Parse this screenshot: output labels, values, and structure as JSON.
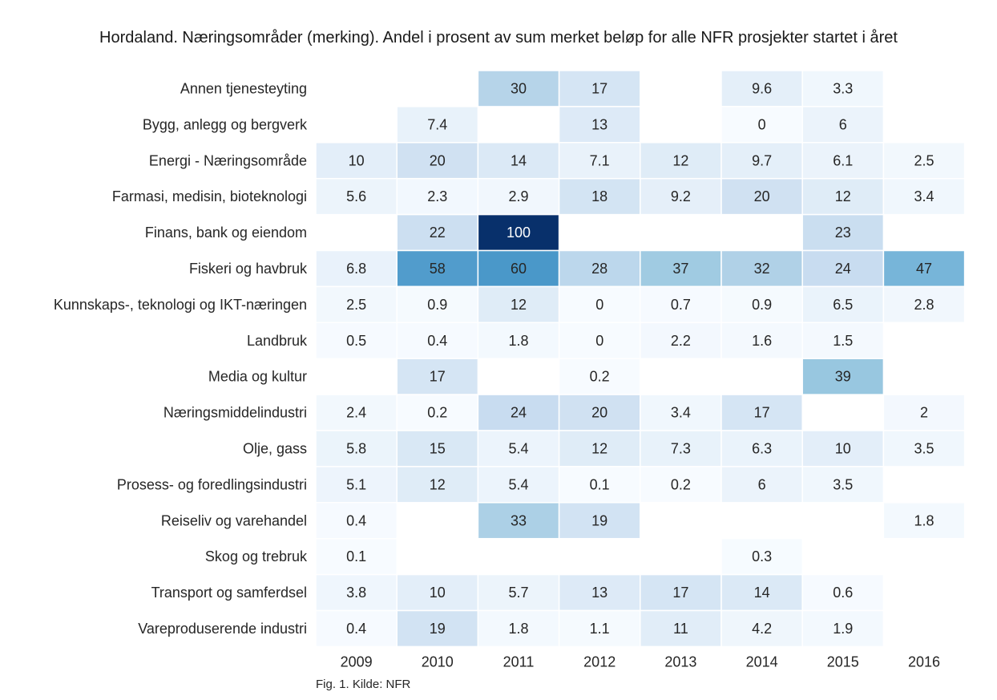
{
  "chart_data": {
    "type": "heatmap",
    "title": "Hordaland. Næringsområder (merking). Andel i prosent av sum merket beløp for alle NFR prosjekter startet i året",
    "xlabel": "",
    "ylabel": "",
    "columns": [
      "2009",
      "2010",
      "2011",
      "2012",
      "2013",
      "2014",
      "2015",
      "2016"
    ],
    "rows": [
      "Annen tjenesteyting",
      "Bygg, anlegg og bergverk",
      "Energi - Næringsområde",
      "Farmasi, medisin, bioteknologi",
      "Finans, bank og eiendom",
      "Fiskeri og havbruk",
      "Kunnskaps-, teknologi og IKT-næringen",
      "Landbruk",
      "Media og kultur",
      "Næringsmiddelindustri",
      "Olje, gass",
      "Prosess- og foredlingsindustri",
      "Reiseliv og varehandel",
      "Skog og trebruk",
      "Transport og samferdsel",
      "Vareproduserende industri"
    ],
    "values": [
      [
        null,
        null,
        30,
        17,
        null,
        9.6,
        3.3,
        null
      ],
      [
        null,
        7.4,
        null,
        13,
        null,
        0,
        6,
        null
      ],
      [
        10,
        20,
        14,
        7.1,
        12,
        9.7,
        6.1,
        2.5
      ],
      [
        5.6,
        2.3,
        2.9,
        18,
        9.2,
        20,
        12,
        3.4
      ],
      [
        null,
        22,
        100,
        null,
        null,
        null,
        23,
        null
      ],
      [
        6.8,
        58,
        60,
        28,
        37,
        32,
        24,
        47
      ],
      [
        2.5,
        0.9,
        12,
        0,
        0.7,
        0.9,
        6.5,
        2.8
      ],
      [
        0.5,
        0.4,
        1.8,
        0,
        2.2,
        1.6,
        1.5,
        null
      ],
      [
        null,
        17,
        null,
        0.2,
        null,
        null,
        39,
        null
      ],
      [
        2.4,
        0.2,
        24,
        20,
        3.4,
        17,
        null,
        2
      ],
      [
        5.8,
        15,
        5.4,
        12,
        7.3,
        6.3,
        10,
        3.5
      ],
      [
        5.1,
        12,
        5.4,
        0.1,
        0.2,
        6,
        3.5,
        null
      ],
      [
        0.4,
        null,
        33,
        19,
        null,
        null,
        null,
        1.8
      ],
      [
        0.1,
        null,
        null,
        null,
        null,
        0.3,
        null,
        null
      ],
      [
        3.8,
        10,
        5.7,
        13,
        17,
        14,
        0.6,
        null
      ],
      [
        0.4,
        19,
        1.8,
        1.1,
        11,
        4.2,
        1.9,
        null
      ]
    ],
    "colormap": "Blues",
    "vmin": 0,
    "vmax": 100,
    "colorbar": false,
    "grid": false,
    "cell_border_color": "#ffffff"
  },
  "caption": "Fig. 1. Kilde: NFR"
}
